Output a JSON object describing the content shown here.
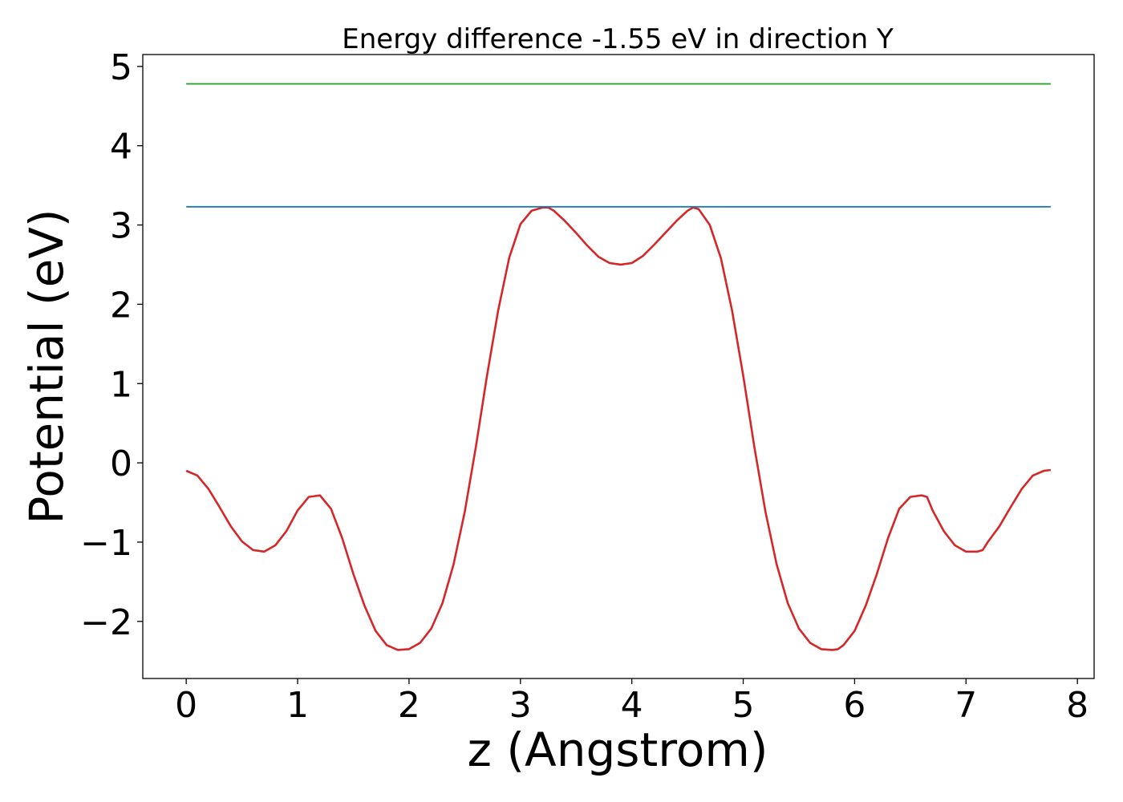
{
  "chart_data": {
    "type": "line",
    "title": "Energy difference -1.55 eV in direction Y",
    "xlabel": "z (Angstrom)",
    "ylabel": "Potential (eV)",
    "xlim": [
      -0.39,
      8.15
    ],
    "ylim": [
      -2.72,
      5.15
    ],
    "xticks": [
      0,
      1,
      2,
      3,
      4,
      5,
      6,
      7,
      8
    ],
    "xtick_labels": [
      "0",
      "1",
      "2",
      "3",
      "4",
      "5",
      "6",
      "7",
      "8"
    ],
    "yticks": [
      -2,
      -1,
      0,
      1,
      2,
      3,
      4,
      5
    ],
    "ytick_labels": [
      "−2",
      "−1",
      "0",
      "1",
      "2",
      "3",
      "4",
      "5"
    ],
    "grid": false,
    "legend": "none",
    "series": [
      {
        "color": "#d62728",
        "x": [
          0.0,
          0.1,
          0.2,
          0.3,
          0.4,
          0.5,
          0.6,
          0.7,
          0.8,
          0.9,
          1.0,
          1.1,
          1.2,
          1.3,
          1.4,
          1.5,
          1.6,
          1.7,
          1.8,
          1.9,
          2.0,
          2.1,
          2.2,
          2.3,
          2.4,
          2.5,
          2.6,
          2.7,
          2.8,
          2.9,
          3.0,
          3.1,
          3.2,
          3.25,
          3.3,
          3.4,
          3.5,
          3.6,
          3.7,
          3.8,
          3.9,
          4.0,
          4.1,
          4.2,
          4.3,
          4.4,
          4.5,
          4.55,
          4.6,
          4.7,
          4.8,
          4.9,
          5.0,
          5.1,
          5.2,
          5.3,
          5.4,
          5.5,
          5.6,
          5.7,
          5.8,
          5.85,
          5.9,
          6.0,
          6.1,
          6.2,
          6.3,
          6.4,
          6.5,
          6.6,
          6.65,
          6.7,
          6.8,
          6.9,
          7.0,
          7.1,
          7.15,
          7.2,
          7.3,
          7.4,
          7.5,
          7.6,
          7.7,
          7.76
        ],
        "y": [
          -0.1,
          -0.16,
          -0.33,
          -0.56,
          -0.8,
          -0.99,
          -1.1,
          -1.12,
          -1.04,
          -0.86,
          -0.6,
          -0.43,
          -0.41,
          -0.58,
          -0.95,
          -1.4,
          -1.8,
          -2.12,
          -2.3,
          -2.36,
          -2.35,
          -2.27,
          -2.09,
          -1.77,
          -1.28,
          -0.62,
          0.2,
          1.1,
          1.92,
          2.59,
          3.01,
          3.18,
          3.22,
          3.22,
          3.18,
          3.05,
          2.9,
          2.74,
          2.6,
          2.52,
          2.5,
          2.52,
          2.61,
          2.75,
          2.9,
          3.05,
          3.18,
          3.22,
          3.2,
          3.0,
          2.58,
          1.92,
          1.1,
          0.2,
          -0.62,
          -1.28,
          -1.77,
          -2.09,
          -2.27,
          -2.35,
          -2.36,
          -2.35,
          -2.3,
          -2.12,
          -1.8,
          -1.4,
          -0.95,
          -0.58,
          -0.43,
          -0.41,
          -0.43,
          -0.6,
          -0.86,
          -1.04,
          -1.12,
          -1.12,
          -1.1,
          -0.99,
          -0.8,
          -0.56,
          -0.33,
          -0.16,
          -0.1,
          -0.09
        ]
      },
      {
        "color": "#1f77b4",
        "x": [
          0.0,
          7.76
        ],
        "y": [
          3.23,
          3.23
        ]
      },
      {
        "color": "#2ca02c",
        "x": [
          0.0,
          7.76
        ],
        "y": [
          4.78,
          4.78
        ]
      }
    ]
  }
}
